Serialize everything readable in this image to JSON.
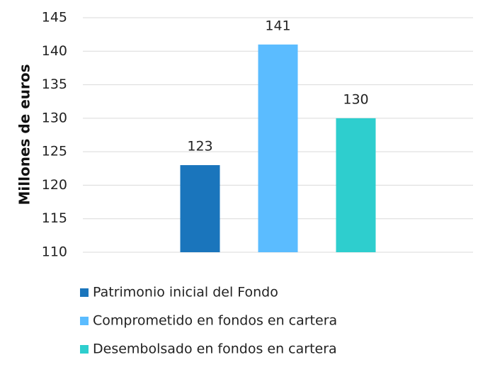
{
  "chart_data": {
    "type": "bar",
    "ylabel": "Millones de euros",
    "categories": [
      null
    ],
    "series": [
      {
        "name": "Patrimonio inicial del Fondo",
        "color": "#1a75bc",
        "values": [
          123
        ]
      },
      {
        "name": "Comprometido en fondos en cartera",
        "color": "#5bbcff",
        "values": [
          141
        ]
      },
      {
        "name": "Desembolsado en fondos en cartera",
        "color": "#2ecece",
        "values": [
          130
        ]
      }
    ],
    "ylim": [
      110,
      145
    ],
    "yticks": [
      110,
      115,
      120,
      125,
      130,
      135,
      140,
      145
    ],
    "grid": true,
    "legend": "bottom"
  }
}
